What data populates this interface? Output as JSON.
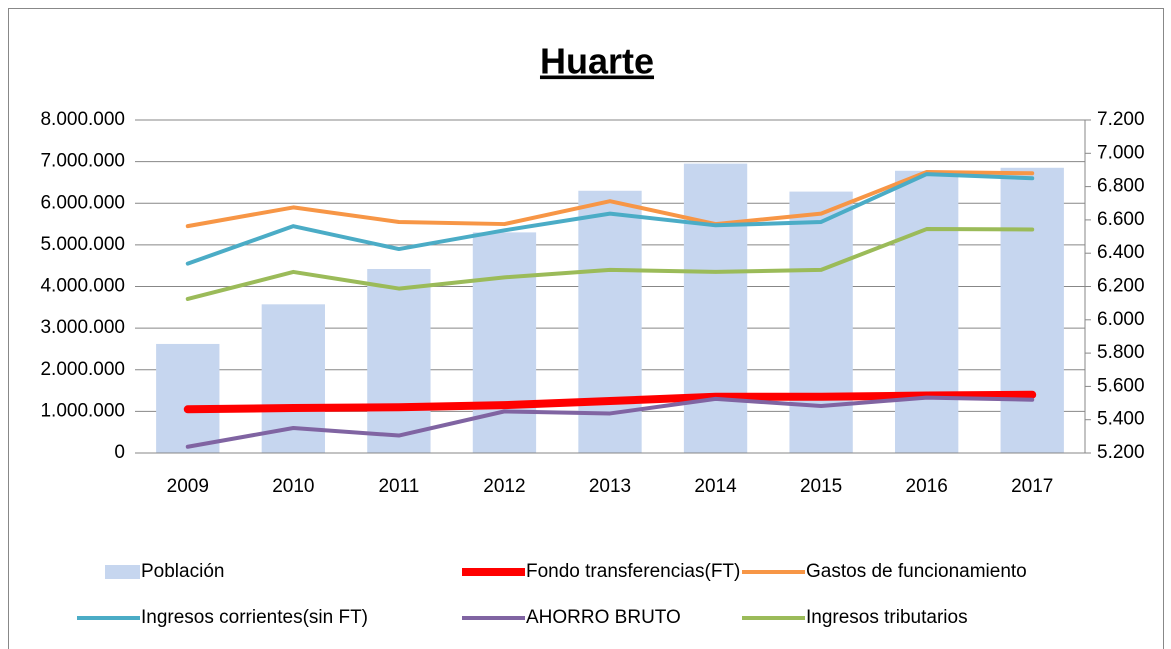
{
  "chart_data": {
    "type": "combo",
    "title": "Huarte",
    "categories": [
      "2009",
      "2010",
      "2011",
      "2012",
      "2013",
      "2014",
      "2015",
      "2016",
      "2017"
    ],
    "ylim": [
      0,
      8000000
    ],
    "yticks": [
      0,
      {
        "value": 1000000,
        "label": "1.000.000"
      },
      {
        "value": 2000000,
        "label": "2.000.000"
      },
      {
        "value": 3000000,
        "label": "3.000.000"
      },
      {
        "value": 4000000,
        "label": "4.000.000"
      },
      {
        "value": 5000000,
        "label": "5.000.000"
      },
      {
        "value": 6000000,
        "label": "6.000.000"
      },
      {
        "value": 7000000,
        "label": "7.000.000"
      },
      {
        "value": 8000000,
        "label": "8.000.000"
      }
    ],
    "y2lim": [
      5200,
      7200
    ],
    "y2ticks": [
      {
        "value": 5200,
        "label": "5.200"
      },
      {
        "value": 5400,
        "label": "5.400"
      },
      {
        "value": 5600,
        "label": "5.600"
      },
      {
        "value": 5800,
        "label": "5.800"
      },
      {
        "value": 6000,
        "label": "6.000"
      },
      {
        "value": 6200,
        "label": "6.200"
      },
      {
        "value": 6400,
        "label": "6.400"
      },
      {
        "value": 6600,
        "label": "6.600"
      },
      {
        "value": 6800,
        "label": "6.800"
      },
      {
        "value": 7000,
        "label": "7.000"
      },
      {
        "value": 7200,
        "label": "7.200"
      }
    ],
    "grid": true,
    "legend": "bottom",
    "series": [
      {
        "name": "Población",
        "type": "bar",
        "axis": "y2",
        "color": "#c6d6ef",
        "values": [
          5855,
          6093,
          6305,
          6525,
          6775,
          6938,
          6770,
          6895,
          6913
        ]
      },
      {
        "name": "Fondo transferencias(FT)",
        "type": "line",
        "color": "#ff0000",
        "width": 8,
        "values": [
          1050000,
          1080000,
          1100000,
          1150000,
          1250000,
          1350000,
          1350000,
          1380000,
          1400000
        ]
      },
      {
        "name": "Gastos de funcionamiento",
        "type": "line",
        "color": "#f79646",
        "width": 4,
        "values": [
          5450000,
          5900000,
          5550000,
          5500000,
          6050000,
          5500000,
          5750000,
          6750000,
          6720000
        ]
      },
      {
        "name": "Ingresos corrientes(sin FT)",
        "type": "line",
        "color": "#4bacc6",
        "width": 4,
        "values": [
          4550000,
          5450000,
          4900000,
          5350000,
          5750000,
          5470000,
          5550000,
          6700000,
          6600000
        ]
      },
      {
        "name": "AHORRO BRUTO",
        "type": "line",
        "color": "#8064a2",
        "width": 4,
        "values": [
          150000,
          600000,
          420000,
          1000000,
          950000,
          1300000,
          1130000,
          1330000,
          1280000
        ]
      },
      {
        "name": "Ingresos tributarios",
        "type": "line",
        "color": "#9bbb59",
        "width": 4,
        "values": [
          3700000,
          4350000,
          3950000,
          4220000,
          4400000,
          4350000,
          4400000,
          5380000,
          5370000
        ]
      }
    ]
  }
}
